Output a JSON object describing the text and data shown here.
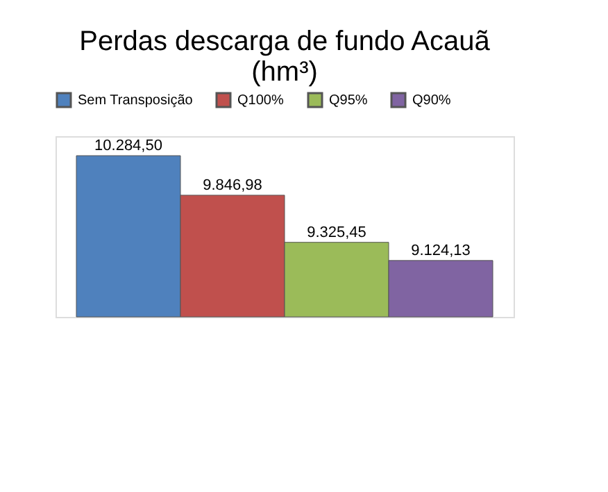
{
  "chart_data": {
    "type": "bar",
    "title": "Perdas descarga de fundo Acauã\n(hm³)",
    "categories": [
      null
    ],
    "series": [
      {
        "name": "Sem Transposição",
        "color": "#4f81bd",
        "values": [
          10284.5
        ],
        "value_labels": [
          "10.284,50"
        ]
      },
      {
        "name": "Q100%",
        "color": "#c0504d",
        "values": [
          9846.98
        ],
        "value_labels": [
          "9.846,98"
        ]
      },
      {
        "name": "Q95%",
        "color": "#9bbb59",
        "values": [
          9325.45
        ],
        "value_labels": [
          "9.325,45"
        ]
      },
      {
        "name": "Q90%",
        "color": "#8064a2",
        "values": [
          9124.13
        ],
        "value_labels": [
          "9.124,13"
        ]
      }
    ],
    "ylim": [
      8500,
      10500
    ],
    "tick_labels": false,
    "grid": false,
    "legend": "top"
  }
}
